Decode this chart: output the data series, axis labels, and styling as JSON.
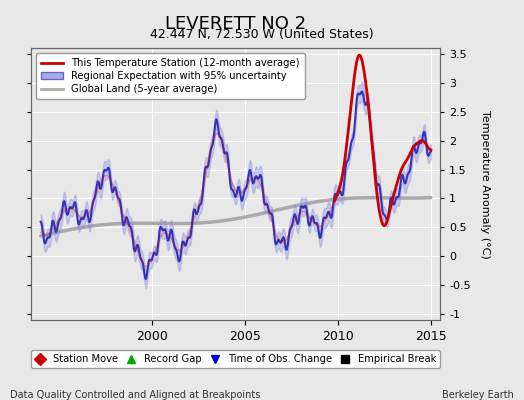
{
  "title": "LEVERETT NO 2",
  "subtitle": "42.447 N, 72.530 W (United States)",
  "ylabel": "Temperature Anomaly (°C)",
  "footer_left": "Data Quality Controlled and Aligned at Breakpoints",
  "footer_right": "Berkeley Earth",
  "xlim": [
    1993.5,
    2015.5
  ],
  "ylim": [
    -1.1,
    3.6
  ],
  "yticks": [
    -1,
    -0.5,
    0,
    0.5,
    1,
    1.5,
    2,
    2.5,
    3,
    3.5
  ],
  "xticks": [
    2000,
    2005,
    2010,
    2015
  ],
  "background_color": "#e8e8e8",
  "plot_bg_color": "#e8e8e8",
  "legend_items": [
    {
      "label": "This Temperature Station (12-month average)",
      "color": "#cc0000",
      "lw": 2
    },
    {
      "label": "Regional Expectation with 95% uncertainty",
      "color": "#4444cc",
      "lw": 2
    },
    {
      "label": "Global Land (5-year average)",
      "color": "#aaaaaa",
      "lw": 2
    }
  ],
  "marker_legend": [
    {
      "label": "Station Move",
      "color": "#cc0000",
      "marker": "D"
    },
    {
      "label": "Record Gap",
      "color": "#00aa00",
      "marker": "^"
    },
    {
      "label": "Time of Obs. Change",
      "color": "#0000cc",
      "marker": "v"
    },
    {
      "label": "Empirical Break",
      "color": "#000000",
      "marker": "s"
    }
  ]
}
